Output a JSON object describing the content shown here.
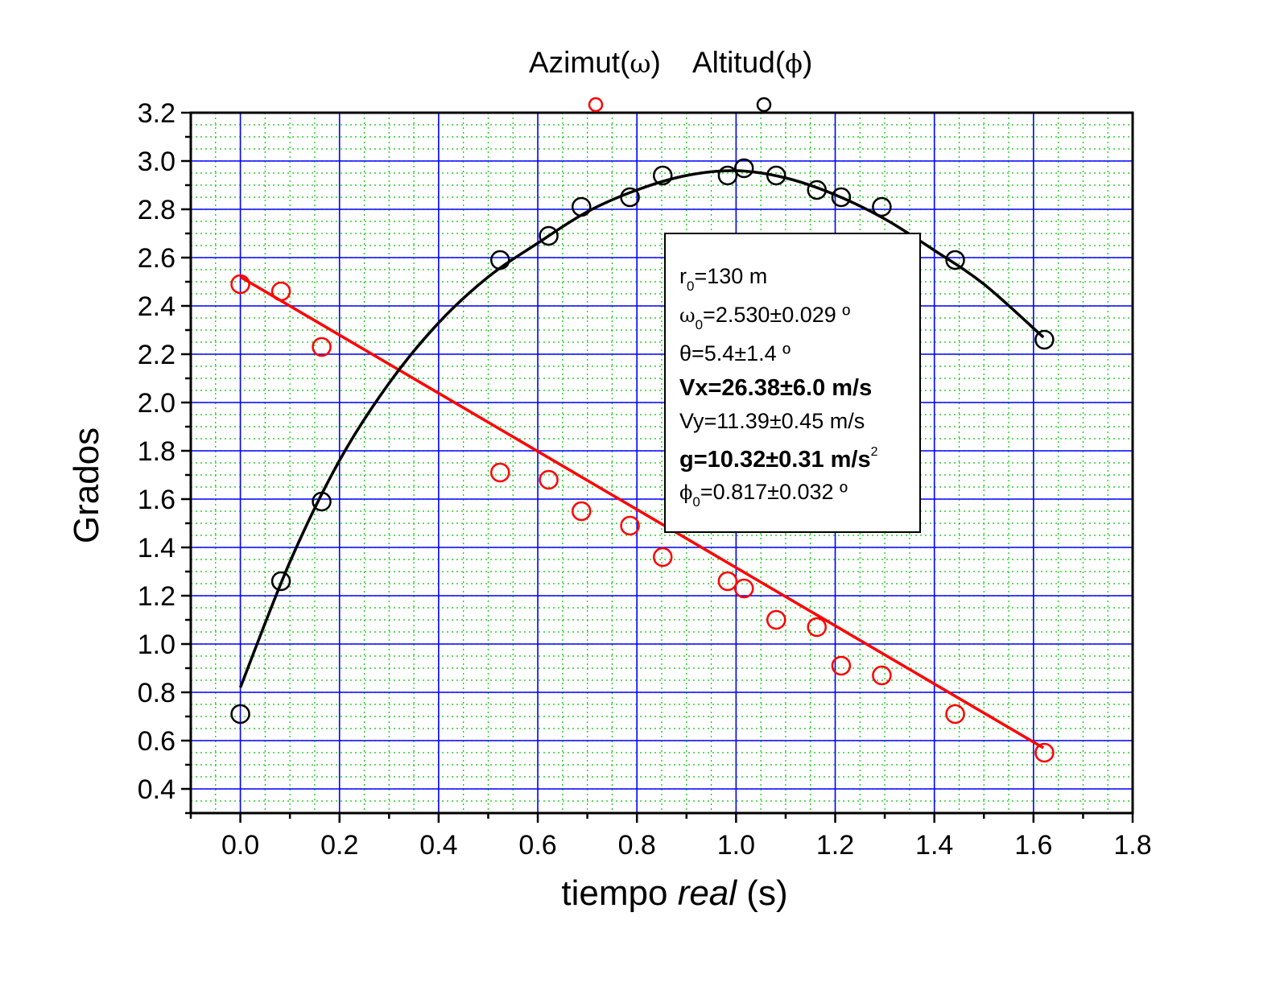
{
  "chart_data": {
    "type": "scatter",
    "title": "",
    "legend": {
      "position": "top",
      "text_prefix_1": "Azimut(",
      "symbol_1": "ω",
      "text_suffix_1": ")",
      "text_prefix_2": "Altitud(",
      "symbol_2": "ϕ",
      "text_suffix_2": ")"
    },
    "xlabel_pre": "tiempo ",
    "xlabel_italic": "real",
    "xlabel_post": " (s)",
    "ylabel": "Grados",
    "xlim": [
      -0.1,
      1.8
    ],
    "ylim": [
      0.3,
      3.2
    ],
    "xticks": [
      "0.0",
      "0.2",
      "0.4",
      "0.6",
      "0.8",
      "1.0",
      "1.2",
      "1.4",
      "1.6",
      "1.8"
    ],
    "yticks": [
      "0.4",
      "0.6",
      "0.8",
      "1.0",
      "1.2",
      "1.4",
      "1.6",
      "1.8",
      "2.0",
      "2.2",
      "2.4",
      "2.6",
      "2.8",
      "3.0",
      "3.2"
    ],
    "grid": {
      "major": true,
      "minor": true,
      "major_color": "#0000ff",
      "minor_color": "#00c800"
    },
    "series": [
      {
        "name": "Azimut(ω)",
        "color": "#ff0000",
        "marker": "open-circle",
        "x": [
          0.0,
          0.082,
          0.164,
          0.524,
          0.622,
          0.688,
          0.786,
          0.852,
          0.983,
          1.016,
          1.081,
          1.163,
          1.212,
          1.294,
          1.442,
          1.622
        ],
        "y": [
          2.49,
          2.46,
          2.23,
          1.71,
          1.68,
          1.55,
          1.49,
          1.36,
          1.26,
          1.23,
          1.1,
          1.07,
          0.91,
          0.87,
          0.71,
          0.55
        ],
        "fit": {
          "kind": "linear",
          "x0": 0.0,
          "x1": 1.62,
          "y0": 2.52,
          "y1": 0.57
        }
      },
      {
        "name": "Altitud(ϕ)",
        "color": "#000000",
        "marker": "open-circle",
        "x": [
          0.0,
          0.082,
          0.164,
          0.524,
          0.622,
          0.688,
          0.786,
          0.852,
          0.983,
          1.016,
          1.081,
          1.163,
          1.212,
          1.294,
          1.442,
          1.622
        ],
        "y": [
          0.71,
          1.26,
          1.59,
          2.59,
          2.69,
          2.81,
          2.85,
          2.94,
          2.94,
          2.97,
          2.94,
          2.88,
          2.85,
          2.81,
          2.59,
          2.26
        ],
        "fit": {
          "kind": "curve",
          "x0": 0.0,
          "x1": 1.62,
          "x": [
            0.0,
            0.1,
            0.2,
            0.3,
            0.4,
            0.5,
            0.6,
            0.7,
            0.8,
            0.9,
            1.0,
            1.1,
            1.2,
            1.3,
            1.4,
            1.5,
            1.62
          ],
          "y": [
            0.82,
            1.34,
            1.76,
            2.08,
            2.33,
            2.52,
            2.66,
            2.79,
            2.88,
            2.94,
            2.96,
            2.93,
            2.86,
            2.76,
            2.63,
            2.49,
            2.27
          ]
        }
      }
    ],
    "annotation": {
      "lines": [
        {
          "main": "r",
          "sub": "0",
          "rest": "=130 m",
          "bold": false
        },
        {
          "main": "ω",
          "sub": "0",
          "rest": "=2.530±0.029 º",
          "bold": false
        },
        {
          "main": "θ=5.4±1.4 º",
          "sub": "",
          "rest": "",
          "bold": false
        },
        {
          "main": "Vx=26.38±6.0 m/s",
          "sub": "",
          "rest": "",
          "bold": true
        },
        {
          "main": "Vy=11.39±0.45 m/s",
          "sub": "",
          "rest": "",
          "bold": false
        },
        {
          "main": "g=10.32±0.31 m/s",
          "sup": "2",
          "sub": "",
          "rest": "",
          "bold": true
        },
        {
          "main": "ϕ",
          "sub": "0",
          "rest": "=0.817±0.032 º",
          "bold": false
        }
      ]
    }
  }
}
